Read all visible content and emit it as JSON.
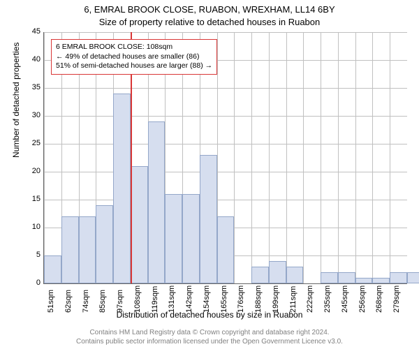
{
  "title_line1": "6, EMRAL BROOK CLOSE, RUABON, WREXHAM, LL14 6BY",
  "title_line2": "Size of property relative to detached houses in Ruabon",
  "ylabel": "Number of detached properties",
  "xlabel": "Distribution of detached houses by size in Ruabon",
  "chart": {
    "type": "histogram",
    "ylim": [
      0,
      45
    ],
    "ytick_step": 5,
    "yticks": [
      0,
      5,
      10,
      15,
      20,
      25,
      30,
      35,
      40,
      45
    ],
    "xticks": [
      "51sqm",
      "62sqm",
      "74sqm",
      "85sqm",
      "97sqm",
      "108sqm",
      "119sqm",
      "131sqm",
      "142sqm",
      "154sqm",
      "165sqm",
      "176sqm",
      "188sqm",
      "199sqm",
      "211sqm",
      "222sqm",
      "235sqm",
      "245sqm",
      "256sqm",
      "268sqm",
      "279sqm"
    ],
    "values": [
      5,
      12,
      12,
      14,
      34,
      21,
      29,
      16,
      16,
      23,
      12,
      0,
      3,
      4,
      3,
      0,
      2,
      2,
      1,
      1,
      2,
      2
    ],
    "bar_fill": "#d6deef",
    "bar_border": "#94a7c9",
    "grid_color": "#c0c0c0",
    "background": "#ffffff",
    "vline_color": "#d93636",
    "vline_x_index": 5
  },
  "annotation": {
    "line1": "6 EMRAL BROOK CLOSE: 108sqm",
    "line2": "← 49% of detached houses are smaller (86)",
    "line3": "51% of semi-detached houses are larger (88) →",
    "border_color": "#d93636"
  },
  "footer_line1": "Contains HM Land Registry data © Crown copyright and database right 2024.",
  "footer_line2": "Contains public sector information licensed under the Open Government Licence v3.0."
}
